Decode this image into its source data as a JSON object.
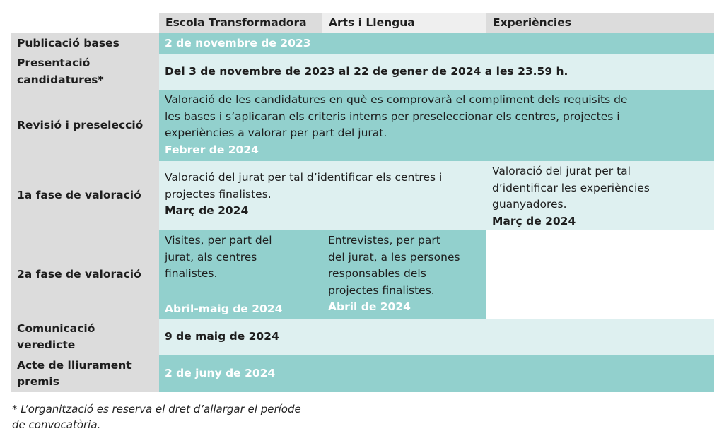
{
  "headers": [
    "Escola Transformadora",
    "Arts i Llengua",
    "Experiències"
  ],
  "rows": {
    "publicacio": {
      "label": "Publicació bases",
      "date": "2 de novembre de 2023"
    },
    "presentacio": {
      "label_line1": "Presentació",
      "label_line2": "candidatures*",
      "text": "Del 3 de novembre de 2023 al 22 de gener de 2024 a les 23.59 h."
    },
    "revisio": {
      "label": "Revisió i preselecció",
      "line1": "Valoració de les candidatures en què es comprovarà el compliment dels requisits de",
      "line2": "les bases i s’aplicaran els criteris interns per preseleccionar els centres, projectes i",
      "line3": "experiències a valorar per part del jurat.",
      "date": "Febrer de 2024"
    },
    "fase1": {
      "label": "1a fase de valoració",
      "left_line1": "Valoració del jurat per tal d’identificar els centres i",
      "left_line2": "projectes finalistes.",
      "left_date": "Març de 2024",
      "right_line1": "Valoració del jurat per tal",
      "right_line2": "d’identificar les experiències",
      "right_line3": "guanyadores.",
      "right_date": "Març de 2024"
    },
    "fase2": {
      "label": "2a fase de valoració",
      "a_line1": "Visites, per part del",
      "a_line2": "jurat, als centres",
      "a_line3": "finalistes.",
      "a_date": "Abril-maig de 2024",
      "b_line1": "Entrevistes, per part",
      "b_line2": "del jurat, a les persones",
      "b_line3": "responsables dels",
      "b_line4": "projectes finalistes.",
      "b_date": "Abril de 2024"
    },
    "comunicacio": {
      "label_line1": "Comunicació",
      "label_line2": "veredicte",
      "date": "9 de maig de 2024"
    },
    "acte": {
      "label_line1": "Acte de lliurament",
      "label_line2": "premis",
      "date": "2 de juny de 2024"
    }
  },
  "footnote": {
    "line1": "* L’organització es reserva el dret d’allargar el període",
    "line2": "de convocatòria."
  }
}
